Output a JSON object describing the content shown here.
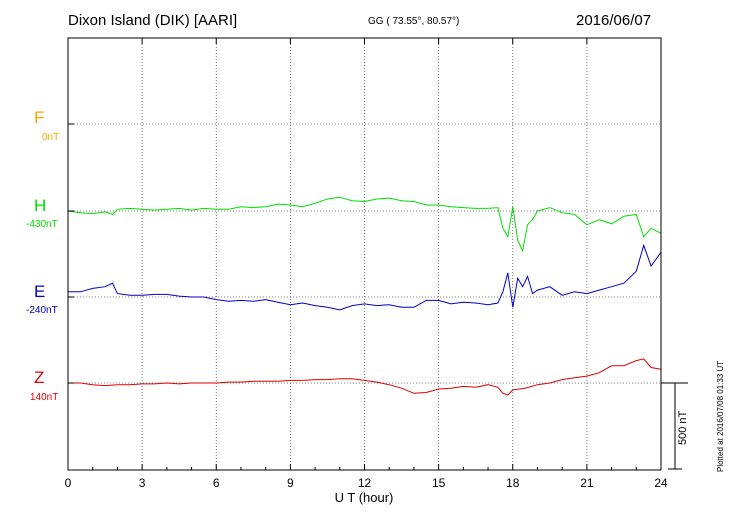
{
  "header": {
    "station": "Dixon Island (DIK)  [AARI]",
    "coords": "GG ( 73.55°,  80.57°)",
    "date": "2016/06/07"
  },
  "channels": [
    {
      "letter": "F",
      "baseline": "0nT",
      "color": "#ffa500"
    },
    {
      "letter": "H",
      "baseline": "-430nT",
      "color": "#00e000"
    },
    {
      "letter": "E",
      "baseline": "-240nT",
      "color": "#0000cc"
    },
    {
      "letter": "Z",
      "baseline": "140nT",
      "color": "#e00000"
    }
  ],
  "scale_label": "500 nT",
  "footer_note": "Plotted at 2016/07/08 01:33 UT",
  "chart_data": {
    "type": "line",
    "xlabel": "U T (hour)",
    "xlim": [
      0,
      24
    ],
    "xticks": [
      "0",
      "3",
      "6",
      "9",
      "12",
      "15",
      "18",
      "21",
      "24"
    ],
    "ylabel": "",
    "grid": true,
    "scale_bar_nT": 500,
    "series": [
      {
        "name": "H",
        "color": "#00e000",
        "baseline_nT": -430,
        "x": [
          0,
          0.5,
          1,
          1.5,
          1.8,
          2,
          2.5,
          3,
          3.5,
          4,
          4.5,
          5,
          5.5,
          6,
          6.5,
          7,
          7.5,
          8,
          8.5,
          9,
          9.5,
          10,
          10.5,
          11,
          11.5,
          12,
          12.5,
          13,
          13.5,
          14,
          14.5,
          15,
          15.5,
          16,
          16.5,
          17,
          17.4,
          17.6,
          17.8,
          18,
          18.2,
          18.4,
          18.6,
          18.8,
          19,
          19.5,
          20,
          20.5,
          21,
          21.5,
          22,
          22.5,
          23,
          23.3,
          23.6,
          24
        ],
        "y": [
          0,
          -10,
          -15,
          -5,
          -20,
          10,
          15,
          10,
          5,
          10,
          15,
          5,
          15,
          10,
          10,
          25,
          20,
          25,
          40,
          35,
          25,
          45,
          70,
          80,
          60,
          55,
          70,
          75,
          60,
          55,
          35,
          35,
          25,
          20,
          15,
          15,
          20,
          -100,
          -150,
          25,
          -170,
          -230,
          -80,
          -50,
          0,
          20,
          -10,
          -20,
          -80,
          -50,
          -75,
          -30,
          -20,
          -150,
          -100,
          -130
        ]
      },
      {
        "name": "E",
        "color": "#0000cc",
        "baseline_nT": -240,
        "x": [
          0,
          0.5,
          1,
          1.5,
          1.8,
          2,
          2.5,
          3,
          3.5,
          4,
          4.5,
          5,
          5.5,
          6,
          6.5,
          7,
          7.5,
          8,
          8.5,
          9,
          9.5,
          10,
          10.5,
          11,
          11.5,
          12,
          12.5,
          13,
          13.5,
          14,
          14.5,
          15,
          15.5,
          16,
          16.5,
          17,
          17.4,
          17.6,
          17.8,
          18,
          18.2,
          18.4,
          18.6,
          18.8,
          19,
          19.5,
          20,
          20.5,
          21,
          21.5,
          22,
          22.5,
          23,
          23.3,
          23.6,
          24
        ],
        "y": [
          30,
          30,
          50,
          60,
          80,
          20,
          10,
          10,
          15,
          15,
          5,
          0,
          0,
          -15,
          -25,
          -20,
          -25,
          -15,
          -30,
          -45,
          -35,
          -50,
          -60,
          -75,
          -50,
          -40,
          -50,
          -45,
          -60,
          -60,
          -20,
          -20,
          -40,
          -30,
          -35,
          -45,
          -35,
          30,
          140,
          -60,
          110,
          60,
          120,
          20,
          40,
          60,
          10,
          30,
          20,
          40,
          60,
          80,
          150,
          300,
          180,
          260
        ]
      },
      {
        "name": "Z",
        "color": "#e00000",
        "baseline_nT": 140,
        "x": [
          0,
          0.5,
          1,
          1.5,
          2,
          2.5,
          3,
          3.5,
          4,
          4.5,
          5,
          5.5,
          6,
          6.5,
          7,
          7.5,
          8,
          8.5,
          9,
          9.5,
          10,
          10.5,
          11,
          11.5,
          12,
          12.5,
          13,
          13.5,
          14,
          14.5,
          15,
          15.5,
          16,
          16.5,
          17,
          17.4,
          17.6,
          17.8,
          18,
          18.5,
          19,
          19.5,
          20,
          20.5,
          21,
          21.5,
          22,
          22.5,
          23,
          23.3,
          23.6,
          24
        ],
        "y": [
          0,
          0,
          -10,
          -15,
          -10,
          -10,
          -5,
          -5,
          0,
          -5,
          0,
          0,
          0,
          5,
          5,
          10,
          10,
          10,
          15,
          15,
          20,
          20,
          25,
          25,
          15,
          5,
          -10,
          -30,
          -60,
          -55,
          -35,
          -30,
          -20,
          -25,
          -10,
          -25,
          -60,
          -70,
          -40,
          -30,
          -10,
          0,
          20,
          30,
          40,
          60,
          100,
          100,
          130,
          140,
          90,
          80
        ]
      }
    ]
  }
}
